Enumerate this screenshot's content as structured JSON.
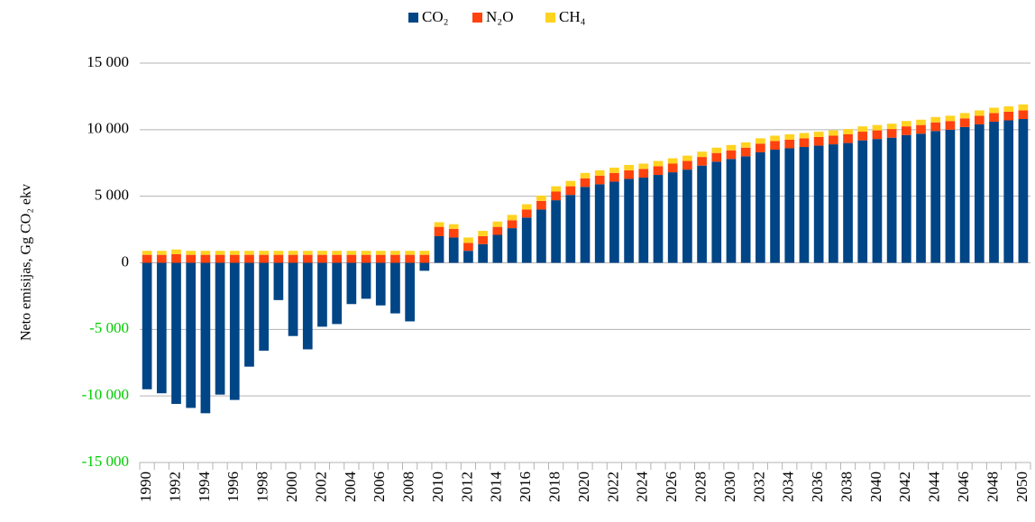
{
  "chart_data": {
    "type": "stacked_bar",
    "y_label": "Neto emisijas, Gg CO₂ ekv",
    "categories": [
      "1990",
      null,
      "1992",
      null,
      "1994",
      null,
      "1996",
      null,
      "1998",
      null,
      "2000",
      null,
      "2002",
      null,
      "2004",
      null,
      "2006",
      null,
      "2008",
      null,
      "2010",
      null,
      "2012",
      null,
      "2014",
      null,
      "2016",
      null,
      "2018",
      null,
      "2020",
      null,
      "2022",
      null,
      "2024",
      null,
      "2026",
      null,
      "2028",
      null,
      "2030",
      null,
      "2032",
      null,
      "2034",
      null,
      "2036",
      null,
      "2038",
      null,
      "2040",
      null,
      "2042",
      null,
      "2044",
      null,
      "2046",
      null,
      "2048",
      null,
      "2050"
    ],
    "series": [
      {
        "name": "CO₂",
        "color": "#004586",
        "values": [
          -9500,
          -9800,
          -10600,
          -10900,
          -11300,
          -9900,
          -10300,
          -7800,
          -6600,
          -2800,
          -5500,
          -6500,
          -4800,
          -4600,
          -3100,
          -2700,
          -3200,
          -3800,
          -4400,
          -600,
          2000,
          1900,
          900,
          1400,
          2100,
          2600,
          3400,
          4000,
          4700,
          5100,
          5700,
          5900,
          6100,
          6300,
          6400,
          6600,
          6800,
          7000,
          7300,
          7600,
          7800,
          8000,
          8300,
          8500,
          8600,
          8700,
          8800,
          8900,
          9000,
          9200,
          9300,
          9400,
          9600,
          9700,
          9900,
          10000,
          10200,
          10400,
          10600,
          10700,
          10800
        ]
      },
      {
        "name": "N₂O",
        "color": "#ff420e",
        "values": [
          600,
          600,
          650,
          600,
          600,
          600,
          600,
          600,
          600,
          600,
          600,
          600,
          600,
          600,
          600,
          600,
          600,
          600,
          600,
          600,
          700,
          650,
          600,
          600,
          600,
          600,
          600,
          650,
          650,
          650,
          650,
          650,
          650,
          650,
          650,
          650,
          650,
          650,
          650,
          650,
          650,
          650,
          650,
          650,
          650,
          650,
          650,
          650,
          650,
          650,
          650,
          650,
          650,
          650,
          650,
          650,
          650,
          650,
          650,
          650,
          650
        ]
      },
      {
        "name": "CH₄",
        "color": "#ffd320",
        "values": [
          300,
          300,
          350,
          300,
          300,
          300,
          300,
          300,
          300,
          300,
          300,
          300,
          300,
          300,
          300,
          300,
          300,
          300,
          300,
          300,
          350,
          350,
          400,
          400,
          400,
          400,
          400,
          400,
          400,
          400,
          400,
          400,
          400,
          400,
          400,
          400,
          400,
          400,
          400,
          400,
          400,
          400,
          400,
          400,
          400,
          400,
          400,
          400,
          400,
          400,
          400,
          400,
          400,
          400,
          400,
          400,
          400,
          400,
          400,
          400,
          450
        ]
      }
    ],
    "ylim": [
      -15000,
      15000
    ],
    "yticks": [
      {
        "value": -15000,
        "label": "-15 000"
      },
      {
        "value": -10000,
        "label": "-10 000"
      },
      {
        "value": -5000,
        "label": "-5 000"
      },
      0,
      {
        "value": 5000,
        "label": "5 000"
      },
      {
        "value": 10000,
        "label": "10 000"
      },
      {
        "value": 15000,
        "label": "15 000"
      }
    ],
    "negative_tick_label_color": "#00cc00",
    "grid": true,
    "legend": "top"
  }
}
